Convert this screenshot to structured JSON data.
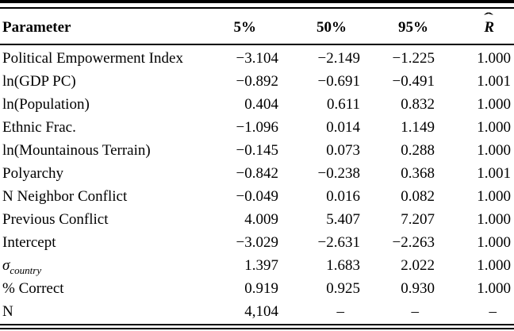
{
  "table": {
    "columns": [
      "Parameter",
      "5%",
      "50%",
      "95%"
    ],
    "rhat_header": {
      "base": "R",
      "hat": "ˆ"
    },
    "rows": [
      {
        "parameter": "Political Empowerment Index",
        "p5": "−3.104",
        "p50": "−2.149",
        "p95": "−1.225",
        "rhat": "1.000"
      },
      {
        "parameter": "ln(GDP PC)",
        "p5": "−0.892",
        "p50": "−0.691",
        "p95": "−0.491",
        "rhat": "1.001"
      },
      {
        "parameter": "ln(Population)",
        "p5": "0.404",
        "p50": "0.611",
        "p95": "0.832",
        "rhat": "1.000"
      },
      {
        "parameter": "Ethnic Frac.",
        "p5": "−1.096",
        "p50": "0.014",
        "p95": "1.149",
        "rhat": "1.000"
      },
      {
        "parameter": "ln(Mountainous Terrain)",
        "p5": "−0.145",
        "p50": "0.073",
        "p95": "0.288",
        "rhat": "1.000"
      },
      {
        "parameter": "Polyarchy",
        "p5": "−0.842",
        "p50": "−0.238",
        "p95": "0.368",
        "rhat": "1.001"
      },
      {
        "parameter": "N Neighbor Conflict",
        "p5": "−0.049",
        "p50": "0.016",
        "p95": "0.082",
        "rhat": "1.000"
      },
      {
        "parameter": "Previous Conflict",
        "p5": "4.009",
        "p50": "5.407",
        "p95": "7.207",
        "rhat": "1.000"
      },
      {
        "parameter": "Intercept",
        "p5": "−3.029",
        "p50": "−2.631",
        "p95": "−2.263",
        "rhat": "1.000"
      },
      {
        "parameter": "σ",
        "parameter_italic": true,
        "parameter_sub": "country",
        "p5": "1.397",
        "p50": "1.683",
        "p95": "2.022",
        "rhat": "1.000"
      },
      {
        "parameter": "% Correct",
        "p5": "0.919",
        "p50": "0.925",
        "p95": "0.930",
        "rhat": "1.000"
      },
      {
        "parameter": "N",
        "p5": "4,104",
        "p50": "–",
        "p95": "–",
        "rhat": "–"
      }
    ]
  }
}
